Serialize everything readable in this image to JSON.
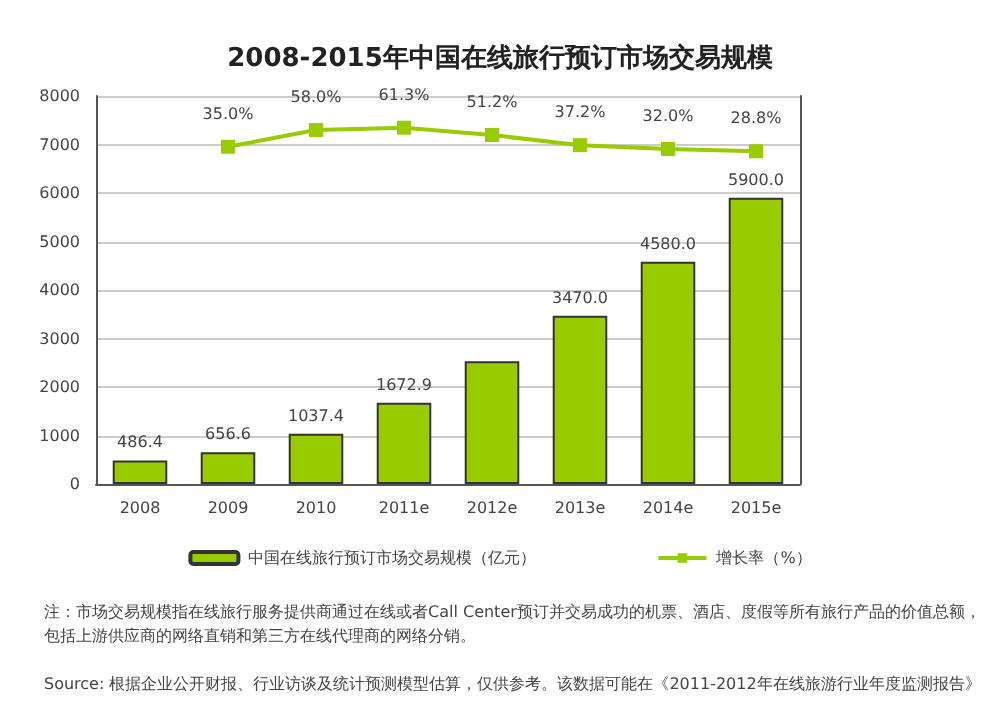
{
  "chart_data": {
    "type": "bar",
    "title": "2008-2015年中国在线旅行预订市场交易规模",
    "categories": [
      "2008",
      "2009",
      "2010",
      "2011e",
      "2012e",
      "2013e",
      "2014e",
      "2015e"
    ],
    "series": [
      {
        "name": "中国在线旅行预订市场交易规模（亿元）",
        "color": "#99cc00",
        "values": [
          486.4,
          656.6,
          1037.4,
          1672.9,
          2530,
          3470.0,
          4580.0,
          5900.0
        ],
        "value_labels": [
          "486.4",
          "656.6",
          "1037.4",
          "1672.9",
          null,
          "3470.0",
          "4580.0",
          "5900.0"
        ]
      },
      {
        "type": "line",
        "name": "增长率（%）",
        "color": "#99cc00",
        "axis": "y2",
        "marker": "square",
        "values": [
          null,
          35.0,
          58.0,
          61.3,
          51.2,
          37.2,
          32.0,
          28.8
        ],
        "value_labels": [
          null,
          "35.0%",
          "58.0%",
          "61.3%",
          "51.2%",
          "37.2%",
          "32.0%",
          "28.8%"
        ]
      }
    ],
    "ylim": [
      0,
      8000
    ],
    "yticks": [
      0,
      1000,
      2000,
      3000,
      4000,
      5000,
      6000,
      7000,
      8000
    ],
    "y2lim": [
      -430,
      105
    ],
    "grid": "y",
    "legend": "bottom",
    "annotations": [
      "注：市场交易规模指在线旅行服务提供商通过在线或者Call Center预订并交易成功的机票、酒店、度假等所有旅行产品的价值总额，包括上游供应商的网络直销和第三方在线代理商的网络分销。",
      "Source: 根据企业公开财报、行业访谈及统计预测模型估算，仅供参考。该数据可能在《2011-2012年在线旅游行业年度监测报告》"
    ]
  }
}
